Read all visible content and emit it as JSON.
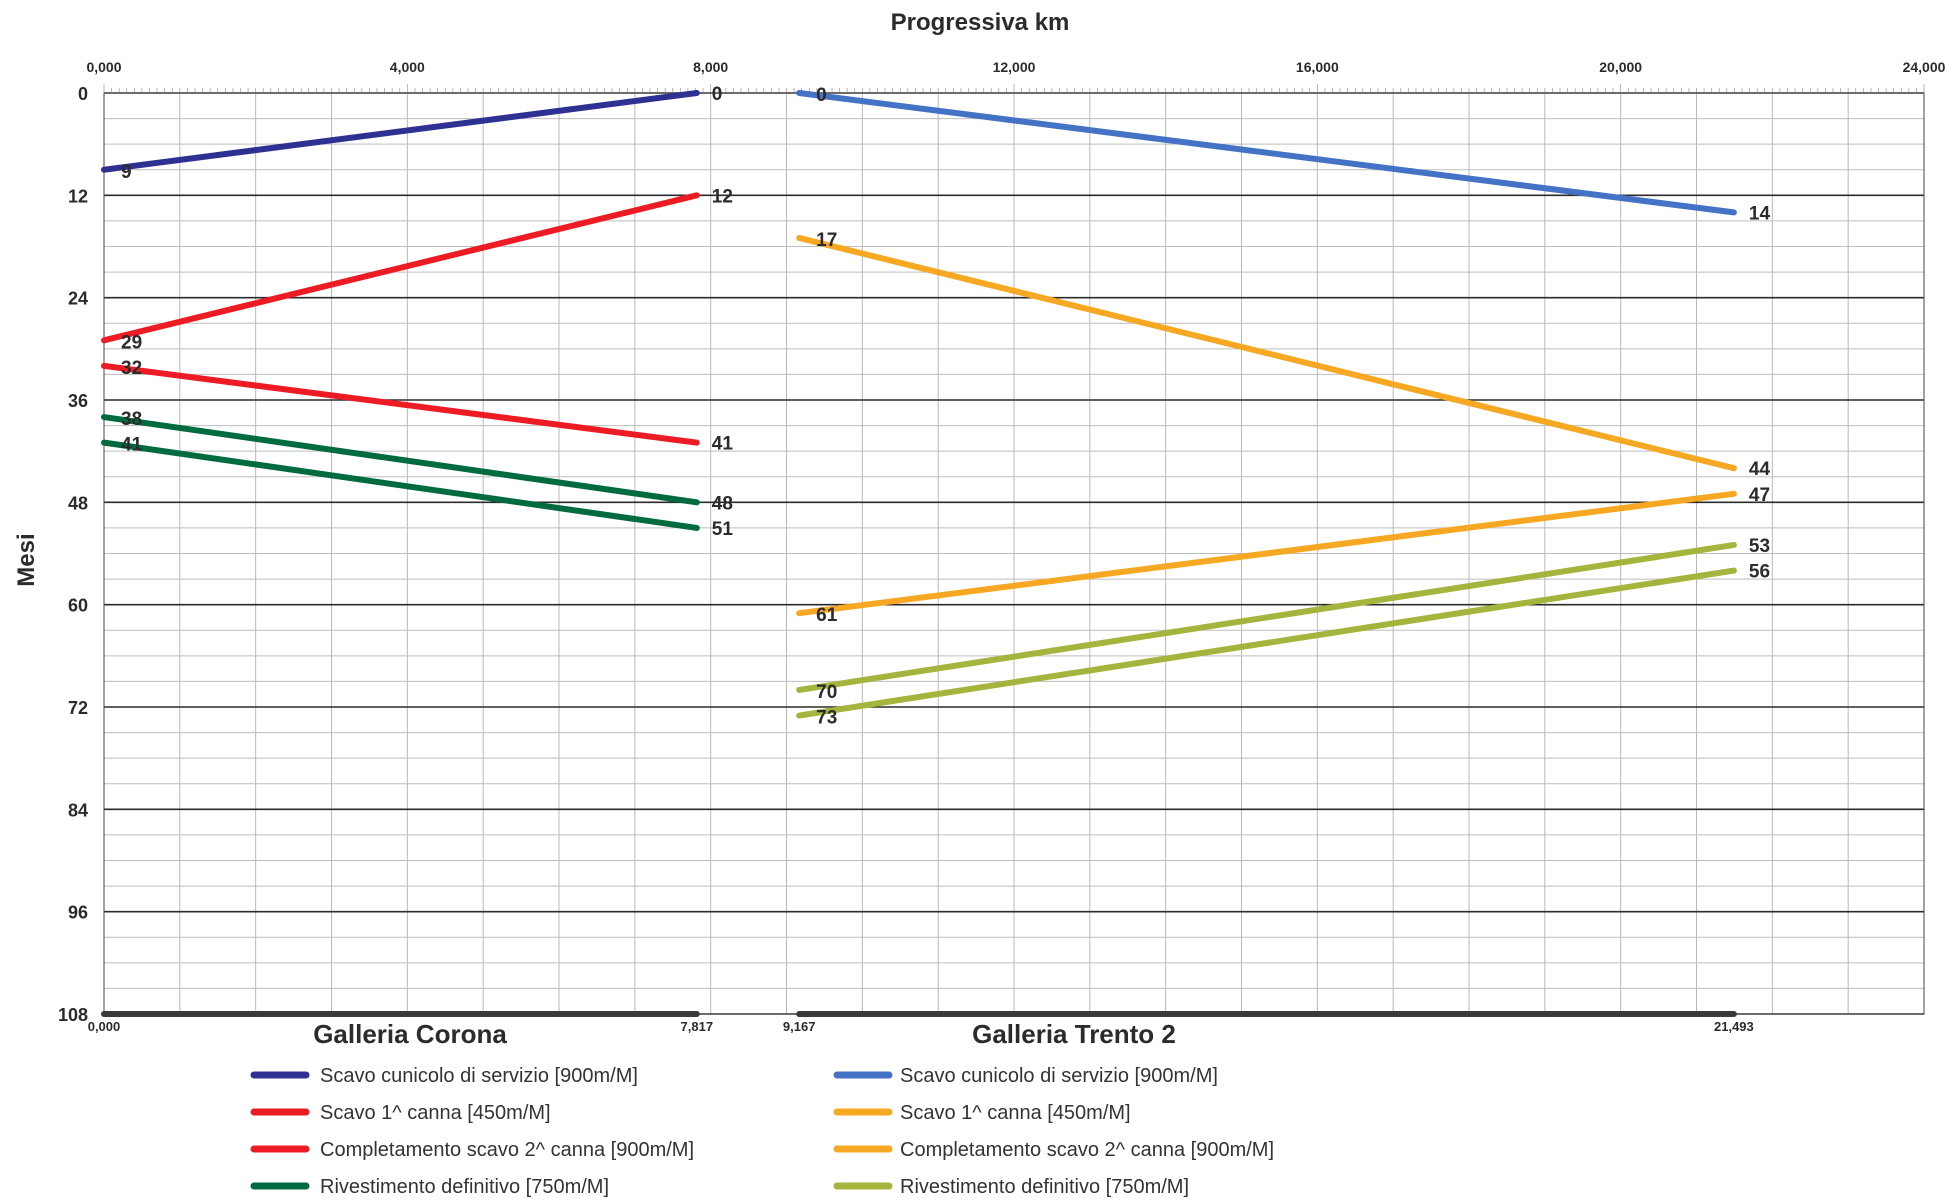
{
  "chart_data": {
    "type": "line",
    "title": "Progressiva km",
    "xlabel": "Progressiva km",
    "ylabel": "Mesi",
    "xlim": [
      0,
      24000
    ],
    "ylim": [
      0,
      108
    ],
    "y_inverted": true,
    "x_ticks": [
      "0,000",
      "4,000",
      "8,000",
      "12,000",
      "16,000",
      "20,000",
      "24,000"
    ],
    "x_tick_values": [
      0,
      4000,
      8000,
      12000,
      16000,
      20000,
      24000
    ],
    "y_ticks": [
      0,
      12,
      24,
      36,
      48,
      60,
      72,
      84,
      96,
      108
    ],
    "grid": true,
    "tunnels": [
      {
        "name": "Galleria Corona",
        "start": 0,
        "end": 7817,
        "start_label": "0,000",
        "end_label": "7,817"
      },
      {
        "name": "Galleria Trento 2",
        "start": 9167,
        "end": 21493,
        "start_label": "9,167",
        "end_label": "21,493"
      }
    ],
    "series": [
      {
        "name": "Scavo cunicolo di servizio [900m/M]",
        "group": "Galleria Corona",
        "color": "#2e3192",
        "x": [
          0,
          7817
        ],
        "y": [
          9,
          0
        ],
        "labels": [
          "9",
          "0"
        ]
      },
      {
        "name": "Scavo 1^ canna [450m/M]",
        "group": "Galleria Corona",
        "color": "#ed1c24",
        "x": [
          0,
          7817
        ],
        "y": [
          29,
          12
        ],
        "labels": [
          "29",
          "12"
        ]
      },
      {
        "name": "Completamento scavo 2^ canna [900m/M]",
        "group": "Galleria Corona",
        "color": "#ed1c24",
        "x": [
          0,
          7817
        ],
        "y": [
          32,
          41
        ],
        "labels": [
          "32",
          "41"
        ]
      },
      {
        "name": "Rivestimento definitivo [750m/M]",
        "group": "Galleria Corona",
        "color": "#006b3f",
        "x": [
          0,
          7817
        ],
        "y": [
          38,
          48
        ],
        "labels": [
          "38",
          "48"
        ]
      },
      {
        "name": "Rivestimento definitivo [750m/M]",
        "group": "Galleria Corona",
        "color": "#006b3f",
        "x": [
          0,
          7817
        ],
        "y": [
          41,
          51
        ],
        "labels": [
          "41",
          "51"
        ]
      },
      {
        "name": "Scavo cunicolo di servizio [900m/M]",
        "group": "Galleria Trento 2",
        "color": "#4472c4",
        "x": [
          9167,
          21493
        ],
        "y": [
          0,
          14
        ],
        "labels": [
          "0",
          "14"
        ]
      },
      {
        "name": "Scavo 1^ canna [450m/M]",
        "group": "Galleria Trento 2",
        "color": "#f7a823",
        "x": [
          9167,
          21493
        ],
        "y": [
          17,
          44
        ],
        "labels": [
          "17",
          "44"
        ]
      },
      {
        "name": "Completamento scavo 2^ canna [900m/M]",
        "group": "Galleria Trento 2",
        "color": "#f7a823",
        "x": [
          9167,
          21493
        ],
        "y": [
          61,
          47
        ],
        "labels": [
          "61",
          "47"
        ]
      },
      {
        "name": "Rivestimento definitivo [750m/M]",
        "group": "Galleria Trento 2",
        "color": "#a4b43c",
        "x": [
          9167,
          21493
        ],
        "y": [
          70,
          53
        ],
        "labels": [
          "70",
          "53"
        ]
      },
      {
        "name": "Rivestimento definitivo [750m/M]",
        "group": "Galleria Trento 2",
        "color": "#a4b43c",
        "x": [
          9167,
          21493
        ],
        "y": [
          73,
          56
        ],
        "labels": [
          "73",
          "56"
        ]
      }
    ],
    "legend": [
      {
        "group": "Galleria Corona",
        "items": [
          {
            "label": "Scavo cunicolo di servizio [900m/M]",
            "color": "#2e3192"
          },
          {
            "label": "Scavo 1^ canna [450m/M]",
            "color": "#ed1c24"
          },
          {
            "label": "Completamento scavo 2^ canna [900m/M]",
            "color": "#ed1c24"
          },
          {
            "label": "Rivestimento definitivo [750m/M]",
            "color": "#006b3f"
          }
        ]
      },
      {
        "group": "Galleria Trento 2",
        "items": [
          {
            "label": "Scavo cunicolo di servizio [900m/M]",
            "color": "#4472c4"
          },
          {
            "label": "Scavo 1^ canna [450m/M]",
            "color": "#f7a823"
          },
          {
            "label": "Completamento scavo 2^ canna [900m/M]",
            "color": "#f7a823"
          },
          {
            "label": "Rivestimento definitivo [750m/M]",
            "color": "#a4b43c"
          }
        ]
      }
    ],
    "legend_placement": "bottom"
  }
}
